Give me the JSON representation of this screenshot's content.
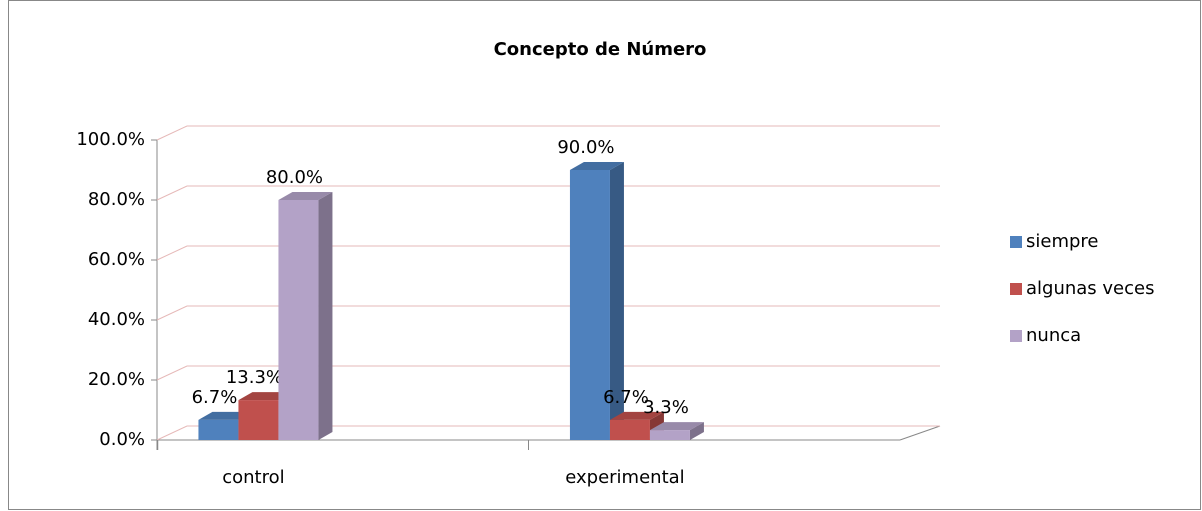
{
  "chart_data": {
    "type": "bar3d",
    "title": "Concepto de Número",
    "categories": [
      "control",
      "experimental"
    ],
    "series": [
      {
        "name": "siempre",
        "color": "#4f81bd",
        "values": [
          6.7,
          90.0
        ],
        "value_labels": [
          "6.7%",
          "90.0%"
        ]
      },
      {
        "name": "algunas veces",
        "color": "#c0504d",
        "values": [
          13.3,
          6.7
        ],
        "value_labels": [
          "13.3%",
          "6.7%"
        ]
      },
      {
        "name": "nunca",
        "color": "#b3a2c7",
        "values": [
          80.0,
          3.3
        ],
        "value_labels": [
          "80.0%",
          "3.3%"
        ]
      }
    ],
    "ylim": [
      0,
      100
    ],
    "yticks": [
      {
        "value": 0,
        "label": "0.0%"
      },
      {
        "value": 20,
        "label": "20.0%"
      },
      {
        "value": 40,
        "label": "40.0%"
      },
      {
        "value": 60,
        "label": "60.0%"
      },
      {
        "value": 80,
        "label": "80.0%"
      },
      {
        "value": 100,
        "label": "100.0%"
      }
    ],
    "grid": true,
    "grid_color": "#e6b9b8",
    "legend": "right"
  }
}
